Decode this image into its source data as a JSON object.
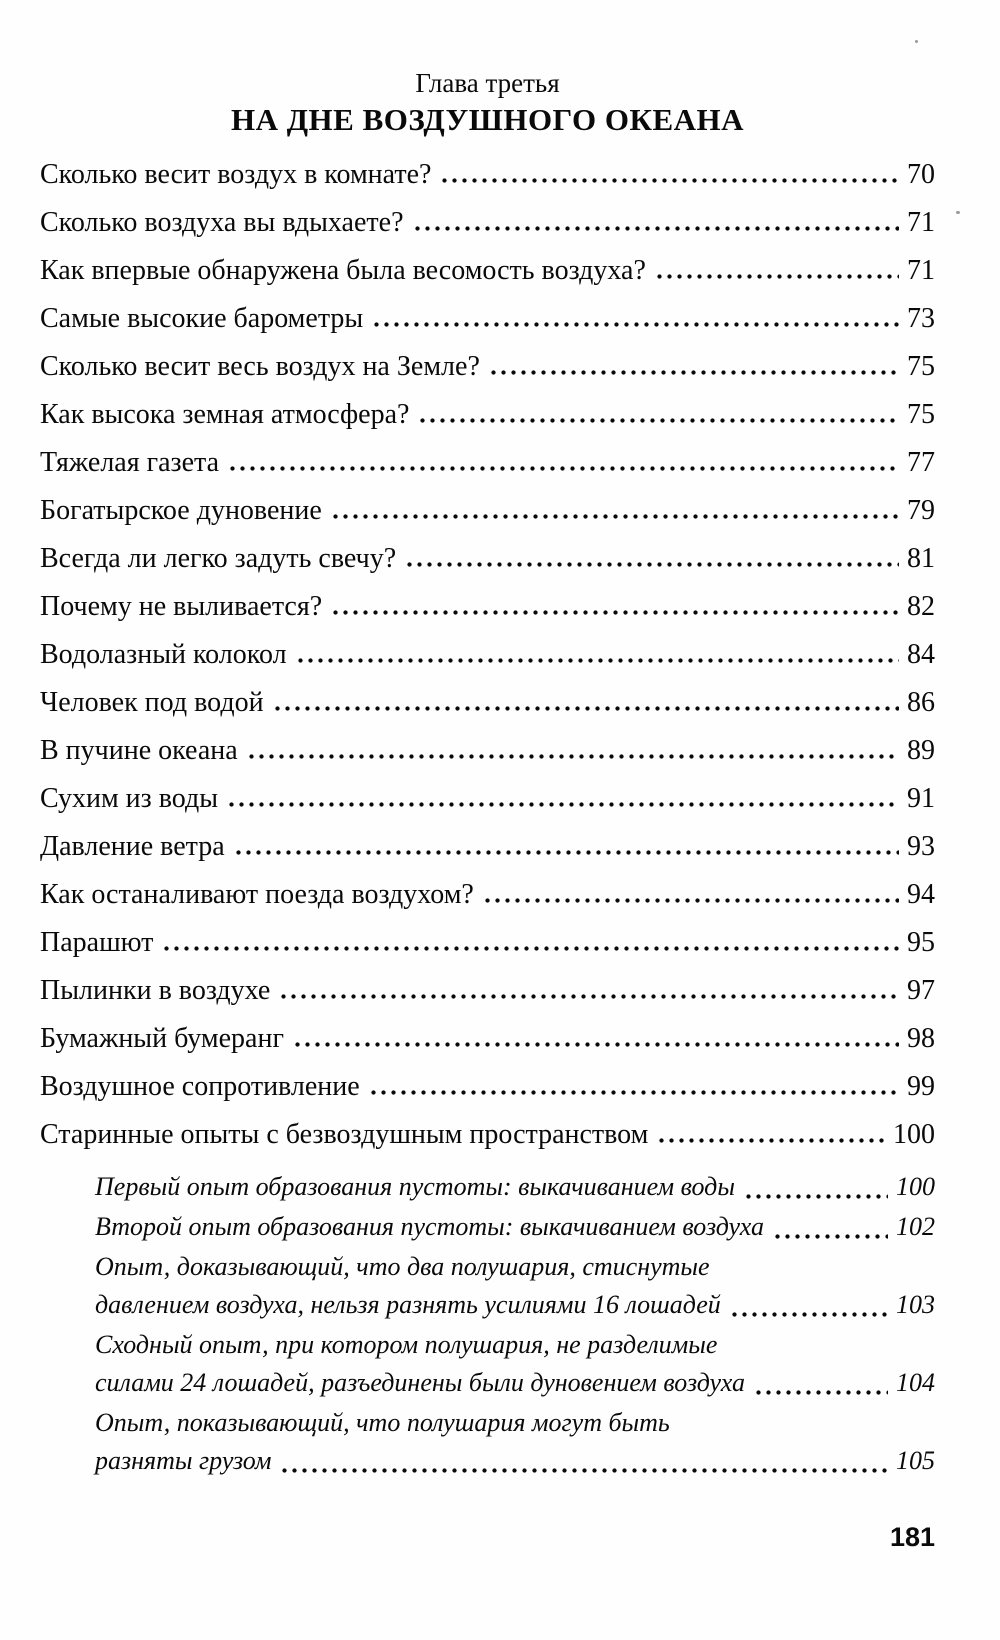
{
  "header": {
    "chapter_label": "Глава третья",
    "chapter_title": "НА ДНЕ ВОЗДУШНОГО ОКЕАНА"
  },
  "toc": {
    "entries": [
      {
        "level": "main",
        "lines": [
          "Сколько весит воздух в комнате?"
        ],
        "page": "70"
      },
      {
        "level": "main",
        "lines": [
          "Сколько воздуха вы вдыхаете?"
        ],
        "page": "71"
      },
      {
        "level": "main",
        "lines": [
          "Как впервые обнаружена была весомость воздуха?"
        ],
        "page": "71"
      },
      {
        "level": "main",
        "lines": [
          "Самые высокие барометры"
        ],
        "page": "73"
      },
      {
        "level": "main",
        "lines": [
          "Сколько весит весь воздух на Земле?"
        ],
        "page": "75"
      },
      {
        "level": "main",
        "lines": [
          "Как высока земная атмосфера?"
        ],
        "page": "75"
      },
      {
        "level": "main",
        "lines": [
          "Тяжелая газета"
        ],
        "page": "77"
      },
      {
        "level": "main",
        "lines": [
          "Богатырское дуновение"
        ],
        "page": "79"
      },
      {
        "level": "main",
        "lines": [
          "Всегда ли легко задуть свечу?"
        ],
        "page": "81"
      },
      {
        "level": "main",
        "lines": [
          "Почему не выливается?"
        ],
        "page": "82"
      },
      {
        "level": "main",
        "lines": [
          "Водолазный колокол"
        ],
        "page": "84"
      },
      {
        "level": "main",
        "lines": [
          "Человек под водой"
        ],
        "page": "86"
      },
      {
        "level": "main",
        "lines": [
          "В пучине океана"
        ],
        "page": "89"
      },
      {
        "level": "main",
        "lines": [
          "Сухим из воды"
        ],
        "page": "91"
      },
      {
        "level": "main",
        "lines": [
          "Давление ветра"
        ],
        "page": "93"
      },
      {
        "level": "main",
        "lines": [
          "Как останаливают поезда воздухом?"
        ],
        "page": "94"
      },
      {
        "level": "main",
        "lines": [
          "Парашют"
        ],
        "page": "95"
      },
      {
        "level": "main",
        "lines": [
          "Пылинки в воздухе"
        ],
        "page": "97"
      },
      {
        "level": "main",
        "lines": [
          "Бумажный бумеранг"
        ],
        "page": "98"
      },
      {
        "level": "main",
        "lines": [
          "Воздушное сопротивление"
        ],
        "page": "99"
      },
      {
        "level": "main",
        "lines": [
          "Старинные опыты с безвоздушным пространством"
        ],
        "page": "100"
      },
      {
        "level": "sub",
        "lines": [
          "Первый опыт образования пустоты: выкачиванием воды"
        ],
        "page": "100"
      },
      {
        "level": "sub",
        "lines": [
          "Второй опыт образования пустоты: выкачиванием воздуха"
        ],
        "page": "102"
      },
      {
        "level": "sub",
        "lines": [
          "Опыт, доказывающий, что два полушария, стиснутые",
          "давлением воздуха, нельзя разнять усилиями 16 лошадей"
        ],
        "page": "103"
      },
      {
        "level": "sub",
        "lines": [
          "Сходный опыт, при котором полушария, не разделимые",
          "силами 24 лошадей, разъединены были дуновением воздуха"
        ],
        "page": "104"
      },
      {
        "level": "sub",
        "lines": [
          "Опыт, показывающий, что полушария могут быть",
          "разняты грузом"
        ],
        "page": "105"
      }
    ]
  },
  "footer": {
    "page_number": "181"
  }
}
